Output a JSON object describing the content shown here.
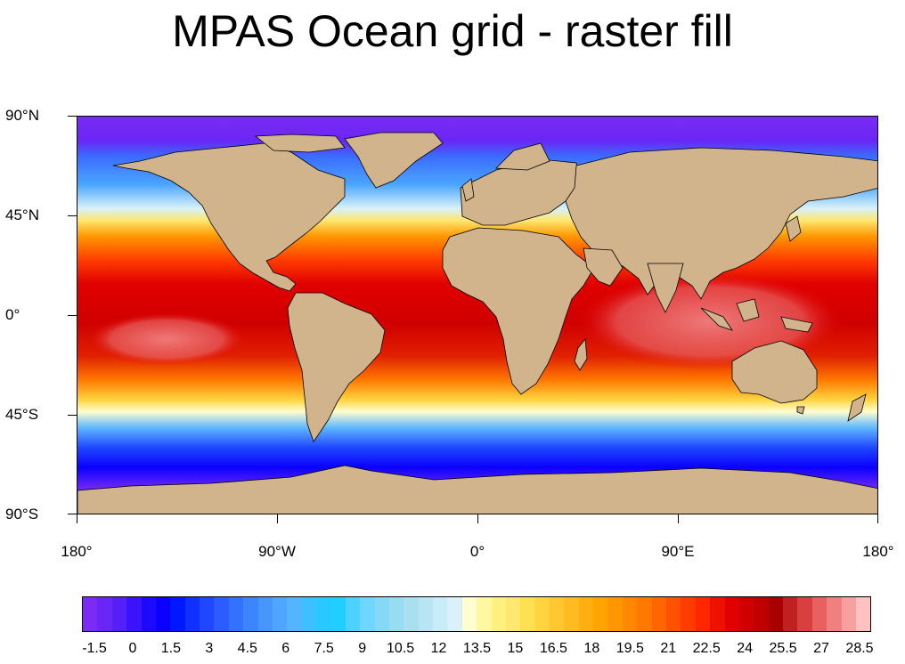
{
  "title": "MPAS Ocean grid - raster fill",
  "map": {
    "projection": "cylindrical-equidistant",
    "land_color": "#d2b48c",
    "coastline_color": "#000000",
    "y_axis_labels": [
      "90°N",
      "45°N",
      "0°",
      "45°S",
      "90°S"
    ],
    "x_axis_labels": [
      "180°",
      "90°W",
      "0°",
      "90°E",
      "180°"
    ]
  },
  "colorbar": {
    "tick_labels": [
      "-1.5",
      "0",
      "1.5",
      "3",
      "4.5",
      "6",
      "7.5",
      "9",
      "10.5",
      "12",
      "13.5",
      "15",
      "16.5",
      "18",
      "19.5",
      "21",
      "22.5",
      "24",
      "25.5",
      "27",
      "28.5"
    ],
    "colors": [
      "#7b2bf5",
      "#6a26f5",
      "#5520f8",
      "#3a12fb",
      "#1e08fd",
      "#0a00ff",
      "#0018ff",
      "#0f30ff",
      "#1f47ff",
      "#2c5cff",
      "#3471ff",
      "#3d84ff",
      "#4795ff",
      "#4fa5ff",
      "#55b4ff",
      "#3cc0ff",
      "#27c9ff",
      "#20cfff",
      "#4dd2ff",
      "#6fd6ff",
      "#84d9f5",
      "#98dcf0",
      "#a8e0f0",
      "#b8e6f5",
      "#c8ecf8",
      "#d8f1fa",
      "#fffed0",
      "#fff8a0",
      "#fff080",
      "#ffe870",
      "#ffe050",
      "#ffd440",
      "#ffc830",
      "#ffbc20",
      "#ffb010",
      "#ffa400",
      "#ff9700",
      "#ff8800",
      "#ff7800",
      "#ff6600",
      "#ff5200",
      "#ff3c00",
      "#ff2600",
      "#f01000",
      "#e00000",
      "#d00000",
      "#c00000",
      "#a80000",
      "#c02020",
      "#d84040",
      "#e86060",
      "#f08080",
      "#f8a0a0",
      "#ffc0c0"
    ]
  }
}
